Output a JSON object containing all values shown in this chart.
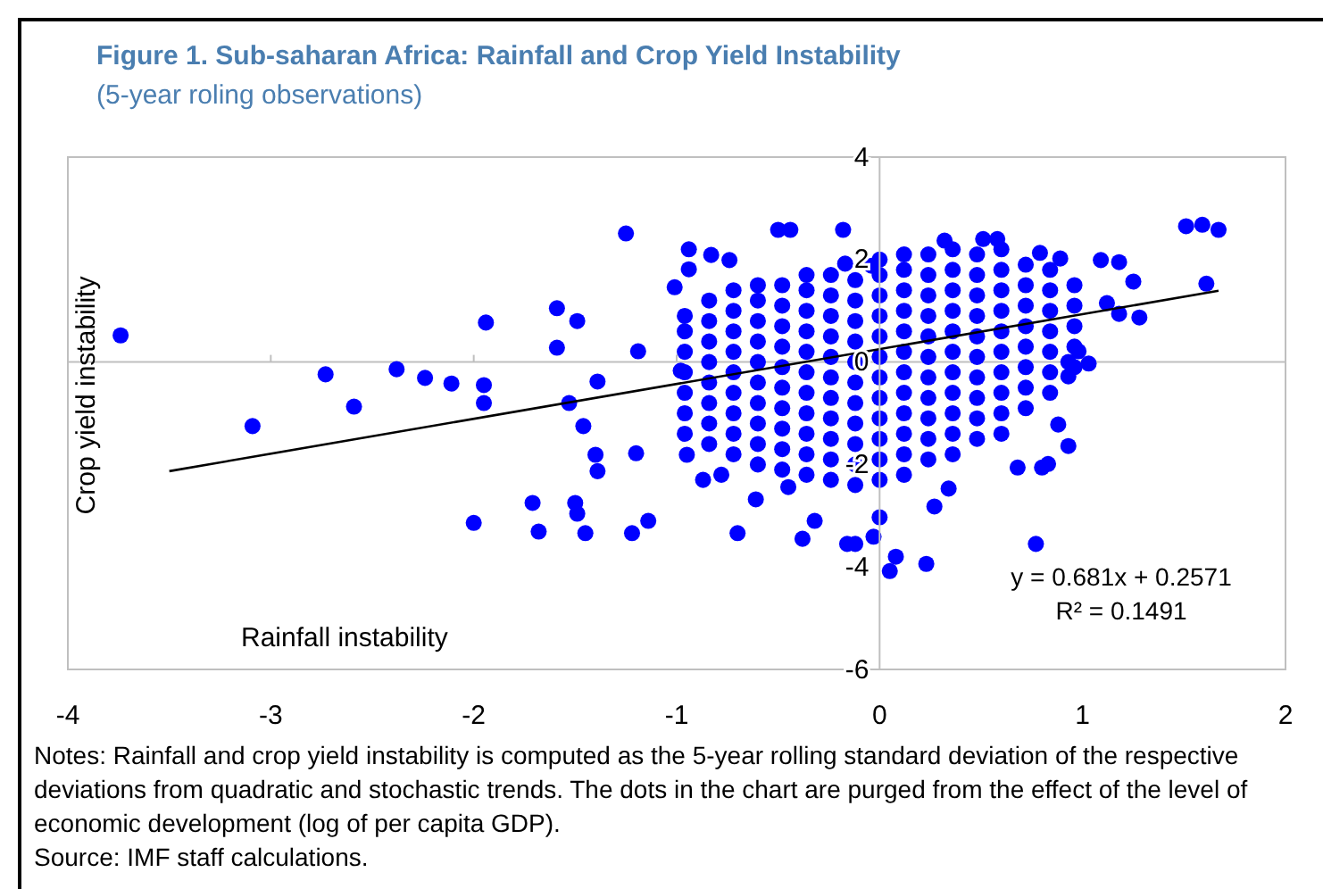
{
  "chart_data": {
    "type": "scatter",
    "title": "Figure 1. Sub-saharan Africa: Rainfall and Crop Yield Instability",
    "subtitle": "(5-year roling observations)",
    "xlabel": "Rainfall instability",
    "ylabel": "Crop yield instability",
    "xlim": [
      -4,
      2
    ],
    "ylim": [
      -6,
      4
    ],
    "xticks": [
      -4,
      -3,
      -2,
      -1,
      0,
      1,
      2
    ],
    "yticks": [
      -6,
      -4,
      -2,
      0,
      2,
      4
    ],
    "series": [
      {
        "marker": "circle",
        "color": "#0000ff",
        "x": [
          -3.74,
          -3.09,
          -2.73,
          -2.38,
          -2.24,
          -2.59,
          -2.11,
          -1.95,
          -1.95,
          -1.94,
          -2.0,
          -1.68,
          -1.71,
          -1.5,
          -1.49,
          -1.45,
          -1.22,
          -1.14,
          -1.25,
          -1.01,
          -0.94,
          -1.59,
          -1.49,
          -1.59,
          -1.46,
          -1.53,
          -1.4,
          -1.39,
          -1.2,
          -1.39,
          -1.19,
          -0.98,
          -0.95,
          -0.5,
          -0.44,
          -0.18,
          -0.94,
          -0.83,
          -0.74,
          -0.7,
          -0.38,
          -0.32,
          -0.16,
          -0.12,
          -0.03,
          0,
          0.08,
          0.05,
          0.23,
          0.27,
          0.34,
          0.77,
          0.68,
          0.8,
          0.83,
          0.93,
          0.88,
          -0.87,
          -0.78,
          -0.61,
          -0.45,
          1.51,
          1.59,
          1.67,
          1.61,
          1.25,
          1.18,
          1.09,
          1.28,
          1.18,
          1.12,
          1.03,
          0.93,
          0.93,
          0.98,
          0.89,
          0.79,
          0.58,
          0.51,
          0.32,
          -0.04,
          -0.17,
          -0.96,
          -0.96,
          -0.96,
          -0.96,
          -0.96,
          -0.96,
          -0.96,
          -0.84,
          -0.84,
          -0.84,
          -0.84,
          -0.84,
          -0.84,
          -0.84,
          -0.84,
          -0.72,
          -0.72,
          -0.72,
          -0.72,
          -0.72,
          -0.72,
          -0.72,
          -0.72,
          -0.72,
          -0.6,
          -0.6,
          -0.6,
          -0.6,
          -0.6,
          -0.6,
          -0.6,
          -0.6,
          -0.6,
          -0.6,
          -0.48,
          -0.48,
          -0.48,
          -0.48,
          -0.48,
          -0.48,
          -0.48,
          -0.48,
          -0.48,
          -0.48,
          -0.36,
          -0.36,
          -0.36,
          -0.36,
          -0.36,
          -0.36,
          -0.36,
          -0.36,
          -0.36,
          -0.36,
          -0.36,
          -0.24,
          -0.24,
          -0.24,
          -0.24,
          -0.24,
          -0.24,
          -0.24,
          -0.24,
          -0.24,
          -0.24,
          -0.24,
          -0.12,
          -0.12,
          -0.12,
          -0.12,
          -0.12,
          -0.12,
          -0.12,
          -0.12,
          -0.12,
          -0.12,
          -0.12,
          0,
          0,
          0,
          0,
          0,
          0,
          0,
          0,
          0,
          0,
          0,
          0,
          0.12,
          0.12,
          0.12,
          0.12,
          0.12,
          0.12,
          0.12,
          0.12,
          0.12,
          0.12,
          0.12,
          0.12,
          0.24,
          0.24,
          0.24,
          0.24,
          0.24,
          0.24,
          0.24,
          0.24,
          0.24,
          0.24,
          0.24,
          0.36,
          0.36,
          0.36,
          0.36,
          0.36,
          0.36,
          0.36,
          0.36,
          0.36,
          0.36,
          0.36,
          0.48,
          0.48,
          0.48,
          0.48,
          0.48,
          0.48,
          0.48,
          0.48,
          0.48,
          0.48,
          0.6,
          0.6,
          0.6,
          0.6,
          0.6,
          0.6,
          0.6,
          0.6,
          0.6,
          0.6,
          0.72,
          0.72,
          0.72,
          0.72,
          0.72,
          0.72,
          0.72,
          0.72,
          0.84,
          0.84,
          0.84,
          0.84,
          0.84,
          0.84,
          0.84,
          0.96,
          0.96,
          0.96,
          0.96,
          0.96
        ],
        "values": [
          0.52,
          -1.25,
          -0.24,
          -0.14,
          -0.31,
          -0.87,
          -0.42,
          -0.45,
          -0.8,
          0.77,
          -3.14,
          -3.31,
          -2.75,
          -2.75,
          -2.96,
          -3.34,
          -3.34,
          -3.1,
          2.51,
          1.46,
          1.81,
          1.05,
          0.8,
          0.28,
          -1.25,
          -0.8,
          -1.81,
          -2.13,
          -1.78,
          -0.38,
          0.21,
          -0.17,
          -1.81,
          2.58,
          2.58,
          2.58,
          2.2,
          2.09,
          1.99,
          -3.34,
          -3.45,
          -3.1,
          -3.55,
          -3.55,
          -3.41,
          -3.03,
          -3.8,
          -4.08,
          -3.94,
          -2.82,
          -2.47,
          -3.55,
          -2.06,
          -2.06,
          -1.99,
          -1.64,
          -1.22,
          -2.3,
          -2.2,
          -2.68,
          -2.44,
          2.65,
          2.68,
          2.58,
          1.53,
          1.57,
          1.95,
          1.99,
          0.87,
          0.94,
          1.15,
          -0.03,
          0,
          -0.28,
          0.21,
          2.02,
          2.13,
          2.4,
          2.4,
          2.37,
          1.88,
          1.92,
          -1.4,
          -1.0,
          -0.6,
          -0.2,
          0.2,
          0.6,
          0.9,
          -1.6,
          -1.2,
          -0.8,
          -0.4,
          0,
          0.4,
          0.8,
          1.2,
          -1.8,
          -1.4,
          -1.0,
          -0.6,
          -0.2,
          0.2,
          0.6,
          1.0,
          1.4,
          -2.0,
          -1.6,
          -1.2,
          -0.8,
          -0.4,
          0,
          0.4,
          0.8,
          1.2,
          1.5,
          -2.1,
          -1.7,
          -1.3,
          -0.9,
          -0.5,
          -0.1,
          0.3,
          0.7,
          1.1,
          1.5,
          -2.2,
          -1.8,
          -1.4,
          -1.0,
          -0.6,
          -0.2,
          0.2,
          0.6,
          1.0,
          1.4,
          1.7,
          -2.3,
          -1.9,
          -1.5,
          -1.1,
          -0.7,
          -0.3,
          0.1,
          0.5,
          0.9,
          1.3,
          1.7,
          -2.4,
          -2.0,
          -1.6,
          -1.2,
          -0.8,
          -0.4,
          0,
          0.4,
          0.8,
          1.2,
          1.6,
          -2.3,
          -1.9,
          -1.5,
          -1.1,
          -0.7,
          -0.3,
          0.1,
          0.5,
          0.9,
          1.3,
          1.7,
          2.0,
          -2.2,
          -1.8,
          -1.4,
          -1.0,
          -0.6,
          -0.2,
          0.2,
          0.6,
          1.0,
          1.4,
          1.8,
          2.1,
          -1.9,
          -1.5,
          -1.1,
          -0.7,
          -0.3,
          0.1,
          0.5,
          0.9,
          1.3,
          1.7,
          2.1,
          -1.8,
          -1.4,
          -1.0,
          -0.6,
          -0.2,
          0.2,
          0.6,
          1.0,
          1.4,
          1.8,
          2.2,
          -1.5,
          -1.1,
          -0.7,
          -0.3,
          0.1,
          0.5,
          0.9,
          1.3,
          1.7,
          2.1,
          -1.4,
          -1.0,
          -0.6,
          -0.2,
          0.2,
          0.6,
          1.0,
          1.4,
          1.8,
          2.2,
          -0.9,
          -0.5,
          -0.1,
          0.3,
          0.7,
          1.1,
          1.5,
          1.9,
          -0.6,
          -0.2,
          0.2,
          0.6,
          1.0,
          1.4,
          1.8,
          -0.1,
          0.3,
          0.7,
          1.1,
          1.5
        ]
      },
      {
        "type": "line",
        "color": "#000000",
        "line_style": "solid",
        "x": [
          -3.5,
          1.67
        ],
        "values": [
          -2.13,
          1.39
        ]
      }
    ],
    "annotations": [
      "y = 0.681x + 0.2571",
      "R² = 0.1491",
      "Notes: Rainfall and crop yield instability is computed as the 5-year rolling standard deviation of the respective deviations from quadratic and stochastic trends. The dots in the chart are purged from the effect of the level of economic development (log of per capita GDP).",
      "Source: IMF staff calculations."
    ]
  }
}
